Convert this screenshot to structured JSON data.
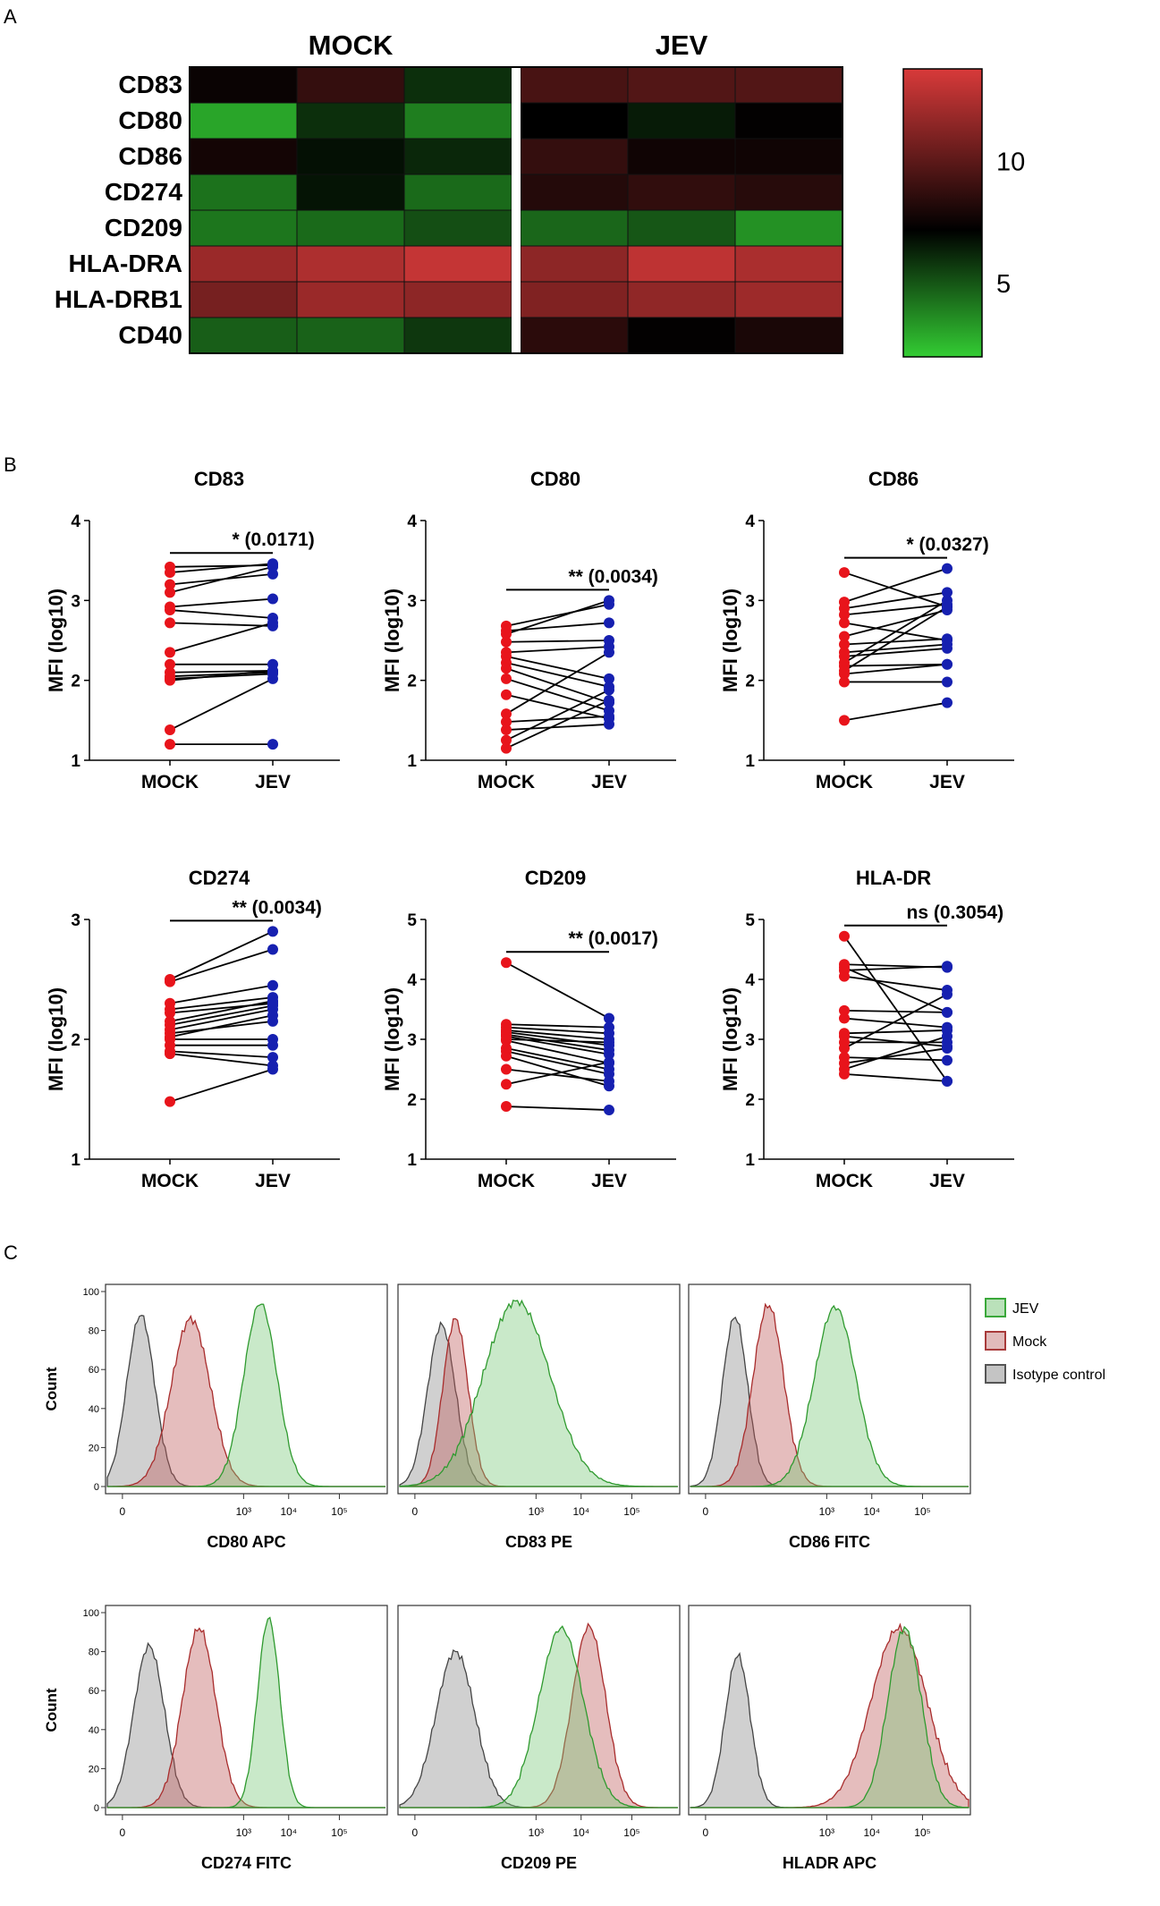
{
  "panel_labels": {
    "a": "A",
    "b": "B",
    "c": "C"
  },
  "chart_data": [
    {
      "type": "heatmap",
      "panel": "A",
      "group_labels": [
        "MOCK",
        "JEV"
      ],
      "rows": [
        "CD83",
        "CD80",
        "CD86",
        "CD274",
        "CD209",
        "HLA-DRA",
        "HLA-DRB1",
        "CD40"
      ],
      "values": [
        [
          7.5,
          8.8,
          6.0,
          9.4,
          9.7,
          9.7
        ],
        [
          3.0,
          6.0,
          4.0,
          7.2,
          6.5,
          7.3
        ],
        [
          7.8,
          6.8,
          6.2,
          8.8,
          7.7,
          7.7
        ],
        [
          4.3,
          6.7,
          4.5,
          8.3,
          8.7,
          8.4
        ],
        [
          4.2,
          4.5,
          5.2,
          4.6,
          5.0,
          3.5
        ],
        [
          11.9,
          12.5,
          13.2,
          11.5,
          13.0,
          12.4
        ],
        [
          10.8,
          11.9,
          11.5,
          11.1,
          11.6,
          12.0
        ],
        [
          4.8,
          4.7,
          5.8,
          8.5,
          7.3,
          8.0
        ]
      ],
      "colorbar": {
        "min": 2,
        "max": 13.8,
        "ticks": [
          5,
          10
        ],
        "low_color": "#33cc33",
        "mid_color": "#000000",
        "high_color": "#d83a3a"
      }
    },
    {
      "type": "scatter",
      "panel": "B",
      "plots": [
        {
          "title": "CD83",
          "ylabel": "MFI (log10)",
          "categories": [
            "MOCK",
            "JEV"
          ],
          "ylim": [
            1,
            4
          ],
          "yticks": [
            "1",
            "2",
            "3",
            "4"
          ],
          "mock": [
            3.42,
            3.35,
            3.2,
            3.1,
            2.92,
            2.88,
            2.72,
            2.35,
            2.2,
            2.1,
            2.05,
            2.02,
            2.0,
            1.38,
            1.2
          ],
          "jev": [
            3.44,
            3.46,
            3.33,
            3.42,
            3.02,
            2.78,
            2.68,
            2.72,
            2.2,
            2.12,
            2.1,
            2.08,
            2.12,
            2.02,
            1.2
          ],
          "annotation": "* (0.0171)"
        },
        {
          "title": "CD80",
          "ylabel": "MFI (log10)",
          "categories": [
            "MOCK",
            "JEV"
          ],
          "ylim": [
            1,
            4
          ],
          "yticks": [
            "1",
            "2",
            "3",
            "4"
          ],
          "mock": [
            2.68,
            2.62,
            2.48,
            2.35,
            2.3,
            2.22,
            2.15,
            2.02,
            1.82,
            1.58,
            1.48,
            1.38,
            1.25,
            1.15,
            2.58
          ],
          "jev": [
            2.95,
            2.72,
            2.5,
            2.42,
            2.02,
            1.92,
            1.72,
            1.62,
            1.52,
            2.35,
            1.55,
            1.45,
            1.88,
            1.75,
            3.0
          ],
          "annotation": "** (0.0034)"
        },
        {
          "title": "CD86",
          "ylabel": "MFI (log10)",
          "categories": [
            "MOCK",
            "JEV"
          ],
          "ylim": [
            1,
            4
          ],
          "yticks": [
            "1",
            "2",
            "3",
            "4"
          ],
          "mock": [
            3.35,
            2.98,
            2.9,
            2.82,
            2.55,
            2.45,
            2.35,
            2.3,
            2.22,
            2.18,
            2.12,
            2.08,
            1.98,
            1.5,
            2.72
          ],
          "jev": [
            2.92,
            3.4,
            3.1,
            2.95,
            2.88,
            2.52,
            2.45,
            2.4,
            3.0,
            2.2,
            2.92,
            2.2,
            1.98,
            1.72,
            2.5
          ],
          "annotation": "* (0.0327)"
        },
        {
          "title": "CD274",
          "ylabel": "MFI (log10)",
          "categories": [
            "MOCK",
            "JEV"
          ],
          "ylim": [
            1,
            3
          ],
          "yticks": [
            "1",
            "2",
            "3"
          ],
          "mock": [
            2.5,
            2.48,
            2.3,
            2.25,
            2.15,
            2.12,
            2.08,
            2.05,
            2.0,
            1.95,
            1.9,
            1.88,
            1.48,
            2.22,
            2.02
          ],
          "jev": [
            2.9,
            2.75,
            2.45,
            2.35,
            2.32,
            2.28,
            2.25,
            2.15,
            2.0,
            1.95,
            1.85,
            1.78,
            1.75,
            2.3,
            2.2
          ],
          "annotation": "** (0.0034)"
        },
        {
          "title": "CD209",
          "ylabel": "MFI (log10)",
          "categories": [
            "MOCK",
            "JEV"
          ],
          "ylim": [
            1,
            5
          ],
          "yticks": [
            "1",
            "2",
            "3",
            "4",
            "5"
          ],
          "mock": [
            4.28,
            3.25,
            3.2,
            3.15,
            3.12,
            3.08,
            3.05,
            2.98,
            2.85,
            2.8,
            2.72,
            2.5,
            2.25,
            1.88,
            3.0
          ],
          "jev": [
            3.35,
            3.2,
            3.1,
            3.0,
            2.9,
            2.82,
            2.75,
            2.6,
            2.5,
            2.42,
            2.22,
            2.3,
            2.62,
            1.82,
            2.95
          ],
          "annotation": "** (0.0017)"
        },
        {
          "title": "HLA-DR",
          "ylabel": "MFI (log10)",
          "categories": [
            "MOCK",
            "JEV"
          ],
          "ylim": [
            1,
            5
          ],
          "yticks": [
            "1",
            "2",
            "3",
            "4",
            "5"
          ],
          "mock": [
            4.72,
            4.25,
            4.15,
            4.05,
            3.48,
            3.35,
            3.1,
            3.05,
            2.95,
            2.85,
            2.7,
            2.6,
            2.5,
            2.42,
            4.2
          ],
          "jev": [
            2.3,
            4.2,
            4.22,
            3.82,
            3.45,
            3.2,
            3.15,
            2.88,
            2.95,
            3.75,
            2.65,
            2.85,
            3.05,
            2.3,
            3.45
          ],
          "annotation": "ns (0.3054)"
        }
      ]
    },
    {
      "type": "area",
      "panel": "C",
      "y_label": "Count",
      "y_ticks": [
        "0",
        "20",
        "40",
        "60",
        "80",
        "100"
      ],
      "x_ticks": [
        "0",
        "10³",
        "10⁴",
        "10⁵"
      ],
      "legend": [
        {
          "label": "JEV",
          "color": "#3aa83a"
        },
        {
          "label": "Mock",
          "color": "#a83a3a"
        },
        {
          "label": "Isotype control",
          "color": "#555555"
        }
      ],
      "plots": [
        {
          "xlabel": "CD80 APC",
          "iso_center": 0.12,
          "iso_width": 0.05,
          "iso_peak": 88,
          "mock_center": 0.3,
          "mock_width": 0.07,
          "mock_peak": 86,
          "jev_center": 0.55,
          "jev_width": 0.06,
          "jev_peak": 94
        },
        {
          "xlabel": "CD83 PE",
          "iso_center": 0.15,
          "iso_width": 0.05,
          "iso_peak": 83,
          "mock_center": 0.2,
          "mock_width": 0.045,
          "mock_peak": 86,
          "jev_center": 0.42,
          "jev_width": 0.12,
          "jev_peak": 95
        },
        {
          "xlabel": "CD86 FITC",
          "iso_center": 0.16,
          "iso_width": 0.045,
          "iso_peak": 87,
          "mock_center": 0.28,
          "mock_width": 0.055,
          "mock_peak": 93,
          "jev_center": 0.52,
          "jev_width": 0.075,
          "jev_peak": 92
        },
        {
          "xlabel": "CD274 FITC",
          "iso_center": 0.15,
          "iso_width": 0.055,
          "iso_peak": 83,
          "mock_center": 0.33,
          "mock_width": 0.06,
          "mock_peak": 92,
          "jev_center": 0.58,
          "jev_width": 0.04,
          "jev_peak": 97
        },
        {
          "xlabel": "CD209 PE",
          "iso_center": 0.2,
          "iso_width": 0.07,
          "iso_peak": 80,
          "mock_center": 0.68,
          "mock_width": 0.06,
          "mock_peak": 93,
          "jev_center": 0.58,
          "jev_width": 0.08,
          "jev_peak": 92
        },
        {
          "xlabel": "HLADR APC",
          "iso_center": 0.17,
          "iso_width": 0.045,
          "iso_peak": 78,
          "mock_center": 0.75,
          "mock_width": 0.1,
          "mock_peak": 92,
          "jev_center": 0.77,
          "jev_width": 0.06,
          "jev_peak": 92
        }
      ]
    }
  ]
}
